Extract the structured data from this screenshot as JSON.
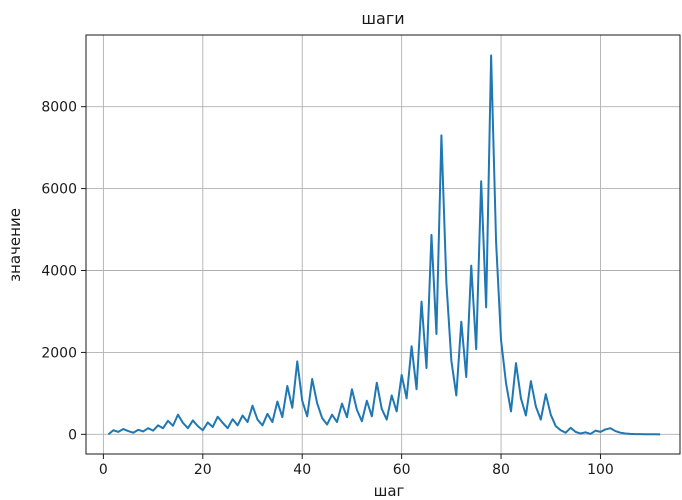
{
  "chart_data": {
    "type": "line",
    "title": "шаги",
    "xlabel": "шаг",
    "ylabel": "значение",
    "xlim": [
      -3.5,
      116
    ],
    "ylim": [
      -480,
      9750
    ],
    "xticks": [
      0,
      20,
      40,
      60,
      80,
      100
    ],
    "yticks": [
      0,
      2000,
      4000,
      6000,
      8000
    ],
    "grid": true,
    "series": [
      {
        "color": "#1f77b4",
        "x": [
          1,
          2,
          3,
          4,
          5,
          6,
          7,
          8,
          9,
          10,
          11,
          12,
          13,
          14,
          15,
          16,
          17,
          18,
          19,
          20,
          21,
          22,
          23,
          24,
          25,
          26,
          27,
          28,
          29,
          30,
          31,
          32,
          33,
          34,
          35,
          36,
          37,
          38,
          39,
          40,
          41,
          42,
          43,
          44,
          45,
          46,
          47,
          48,
          49,
          50,
          51,
          52,
          53,
          54,
          55,
          56,
          57,
          58,
          59,
          60,
          61,
          62,
          63,
          64,
          65,
          66,
          67,
          68,
          69,
          70,
          71,
          72,
          73,
          74,
          75,
          76,
          77,
          78,
          79,
          80,
          81,
          82,
          83,
          84,
          85,
          86,
          87,
          88,
          89,
          90,
          91,
          92,
          93,
          94,
          95,
          96,
          97,
          98,
          99,
          100,
          101,
          102,
          103,
          104,
          105,
          106,
          107,
          108,
          109,
          110,
          111,
          112
        ],
        "y": [
          0,
          100,
          60,
          130,
          80,
          40,
          110,
          70,
          150,
          90,
          220,
          150,
          330,
          210,
          480,
          280,
          150,
          340,
          200,
          100,
          290,
          180,
          430,
          280,
          150,
          370,
          220,
          460,
          300,
          700,
          360,
          220,
          500,
          300,
          800,
          420,
          1180,
          650,
          1780,
          820,
          440,
          1350,
          760,
          400,
          240,
          480,
          300,
          750,
          420,
          1100,
          600,
          320,
          820,
          440,
          1260,
          620,
          360,
          950,
          560,
          1450,
          880,
          2150,
          1100,
          3240,
          1620,
          4870,
          2450,
          7300,
          3700,
          1800,
          950,
          2750,
          1400,
          4120,
          2080,
          6180,
          3100,
          9250,
          4700,
          2300,
          1250,
          560,
          1740,
          880,
          460,
          1300,
          680,
          360,
          980,
          480,
          200,
          100,
          40,
          160,
          60,
          20,
          50,
          10,
          90,
          60,
          120,
          150,
          80,
          40,
          20,
          10,
          5,
          5,
          3,
          2,
          1,
          0
        ]
      }
    ]
  }
}
